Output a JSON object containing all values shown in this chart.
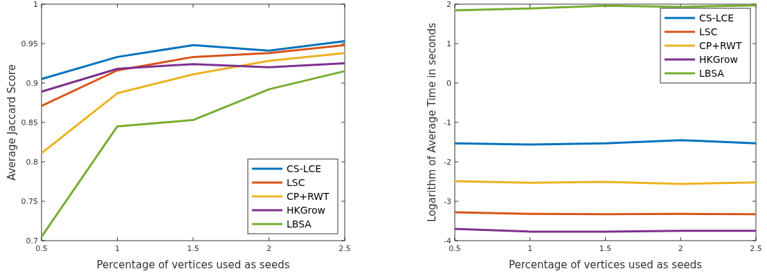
{
  "chart_data": [
    {
      "type": "line",
      "xlabel": "Percentage of vertices used as seeds",
      "ylabel": "Average Jaccard Score",
      "x": [
        0.5,
        1,
        1.5,
        2,
        2.5
      ],
      "xlim": [
        0.5,
        2.5
      ],
      "xticks": [
        0.5,
        1,
        1.5,
        2,
        2.5
      ],
      "ylim": [
        0.7,
        1
      ],
      "yticks": [
        0.7,
        0.75,
        0.8,
        0.85,
        0.9,
        0.95,
        1
      ],
      "legend": "bottom right",
      "grid": false,
      "series": [
        {
          "name": "CS-LCE",
          "color": "#0072bd",
          "values": [
            0.905,
            0.933,
            0.948,
            0.941,
            0.953
          ]
        },
        {
          "name": "LSC",
          "color": "#d95319",
          "values": [
            0.871,
            0.916,
            0.933,
            0.938,
            0.948
          ]
        },
        {
          "name": "CP+RWT",
          "color": "#edb120",
          "values": [
            0.811,
            0.887,
            0.911,
            0.928,
            0.938
          ]
        },
        {
          "name": "HKGrow",
          "color": "#7e2f8e",
          "values": [
            0.889,
            0.918,
            0.924,
            0.92,
            0.925
          ]
        },
        {
          "name": "LBSA",
          "color": "#77ac30",
          "values": [
            0.705,
            0.845,
            0.853,
            0.892,
            0.915
          ]
        }
      ]
    },
    {
      "type": "line",
      "xlabel": "Percentage of vertices used as seeds",
      "ylabel": "Logarithm of Average Time in seconds",
      "x": [
        0.5,
        1,
        1.5,
        2,
        2.5
      ],
      "xlim": [
        0.5,
        2.5
      ],
      "xticks": [
        0.5,
        1,
        1.5,
        2,
        2.5
      ],
      "ylim": [
        -4,
        2
      ],
      "yticks": [
        -4,
        -3,
        -2,
        -1,
        0,
        1,
        2
      ],
      "legend": "top right",
      "grid": false,
      "series": [
        {
          "name": "CS-LCE",
          "color": "#0072bd",
          "values": [
            -1.53,
            -1.56,
            -1.53,
            -1.45,
            -1.53
          ]
        },
        {
          "name": "LSC",
          "color": "#d95319",
          "values": [
            -3.28,
            -3.32,
            -3.33,
            -3.32,
            -3.33
          ]
        },
        {
          "name": "CP+RWT",
          "color": "#edb120",
          "values": [
            -2.49,
            -2.53,
            -2.51,
            -2.56,
            -2.52
          ]
        },
        {
          "name": "HKGrow",
          "color": "#7e2f8e",
          "values": [
            -3.7,
            -3.77,
            -3.77,
            -3.75,
            -3.75
          ]
        },
        {
          "name": "LBSA",
          "color": "#77ac30",
          "values": [
            1.84,
            1.89,
            1.96,
            1.93,
            1.97
          ]
        }
      ]
    }
  ]
}
